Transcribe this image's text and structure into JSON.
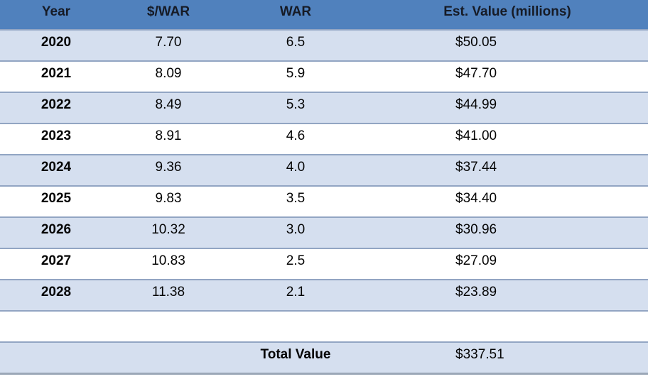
{
  "colors": {
    "header_background": "#5081BD",
    "band_row_background": "#D5DFEF",
    "plain_row_background": "#FFFFFF",
    "row_border": "#92A5C3",
    "bottom_edge": "#9BA7B7",
    "header_text": "#161B26",
    "body_text": "#050505"
  },
  "table": {
    "columns": [
      "Year",
      "$/WAR",
      "WAR",
      "Est. Value (millions)"
    ],
    "rows": [
      {
        "year": "2020",
        "dollar_per_war": "7.70",
        "war": "6.5",
        "est_value": "$50.05"
      },
      {
        "year": "2021",
        "dollar_per_war": "8.09",
        "war": "5.9",
        "est_value": "$47.70"
      },
      {
        "year": "2022",
        "dollar_per_war": "8.49",
        "war": "5.3",
        "est_value": "$44.99"
      },
      {
        "year": "2023",
        "dollar_per_war": "8.91",
        "war": "4.6",
        "est_value": "$41.00"
      },
      {
        "year": "2024",
        "dollar_per_war": "9.36",
        "war": "4.0",
        "est_value": "$37.44"
      },
      {
        "year": "2025",
        "dollar_per_war": "9.83",
        "war": "3.5",
        "est_value": "$34.40"
      },
      {
        "year": "2026",
        "dollar_per_war": "10.32",
        "war": "3.0",
        "est_value": "$30.96"
      },
      {
        "year": "2027",
        "dollar_per_war": "10.83",
        "war": "2.5",
        "est_value": "$27.09"
      },
      {
        "year": "2028",
        "dollar_per_war": "11.38",
        "war": "2.1",
        "est_value": "$23.89"
      }
    ],
    "total": {
      "label": "Total Value",
      "value": "$337.51"
    }
  }
}
